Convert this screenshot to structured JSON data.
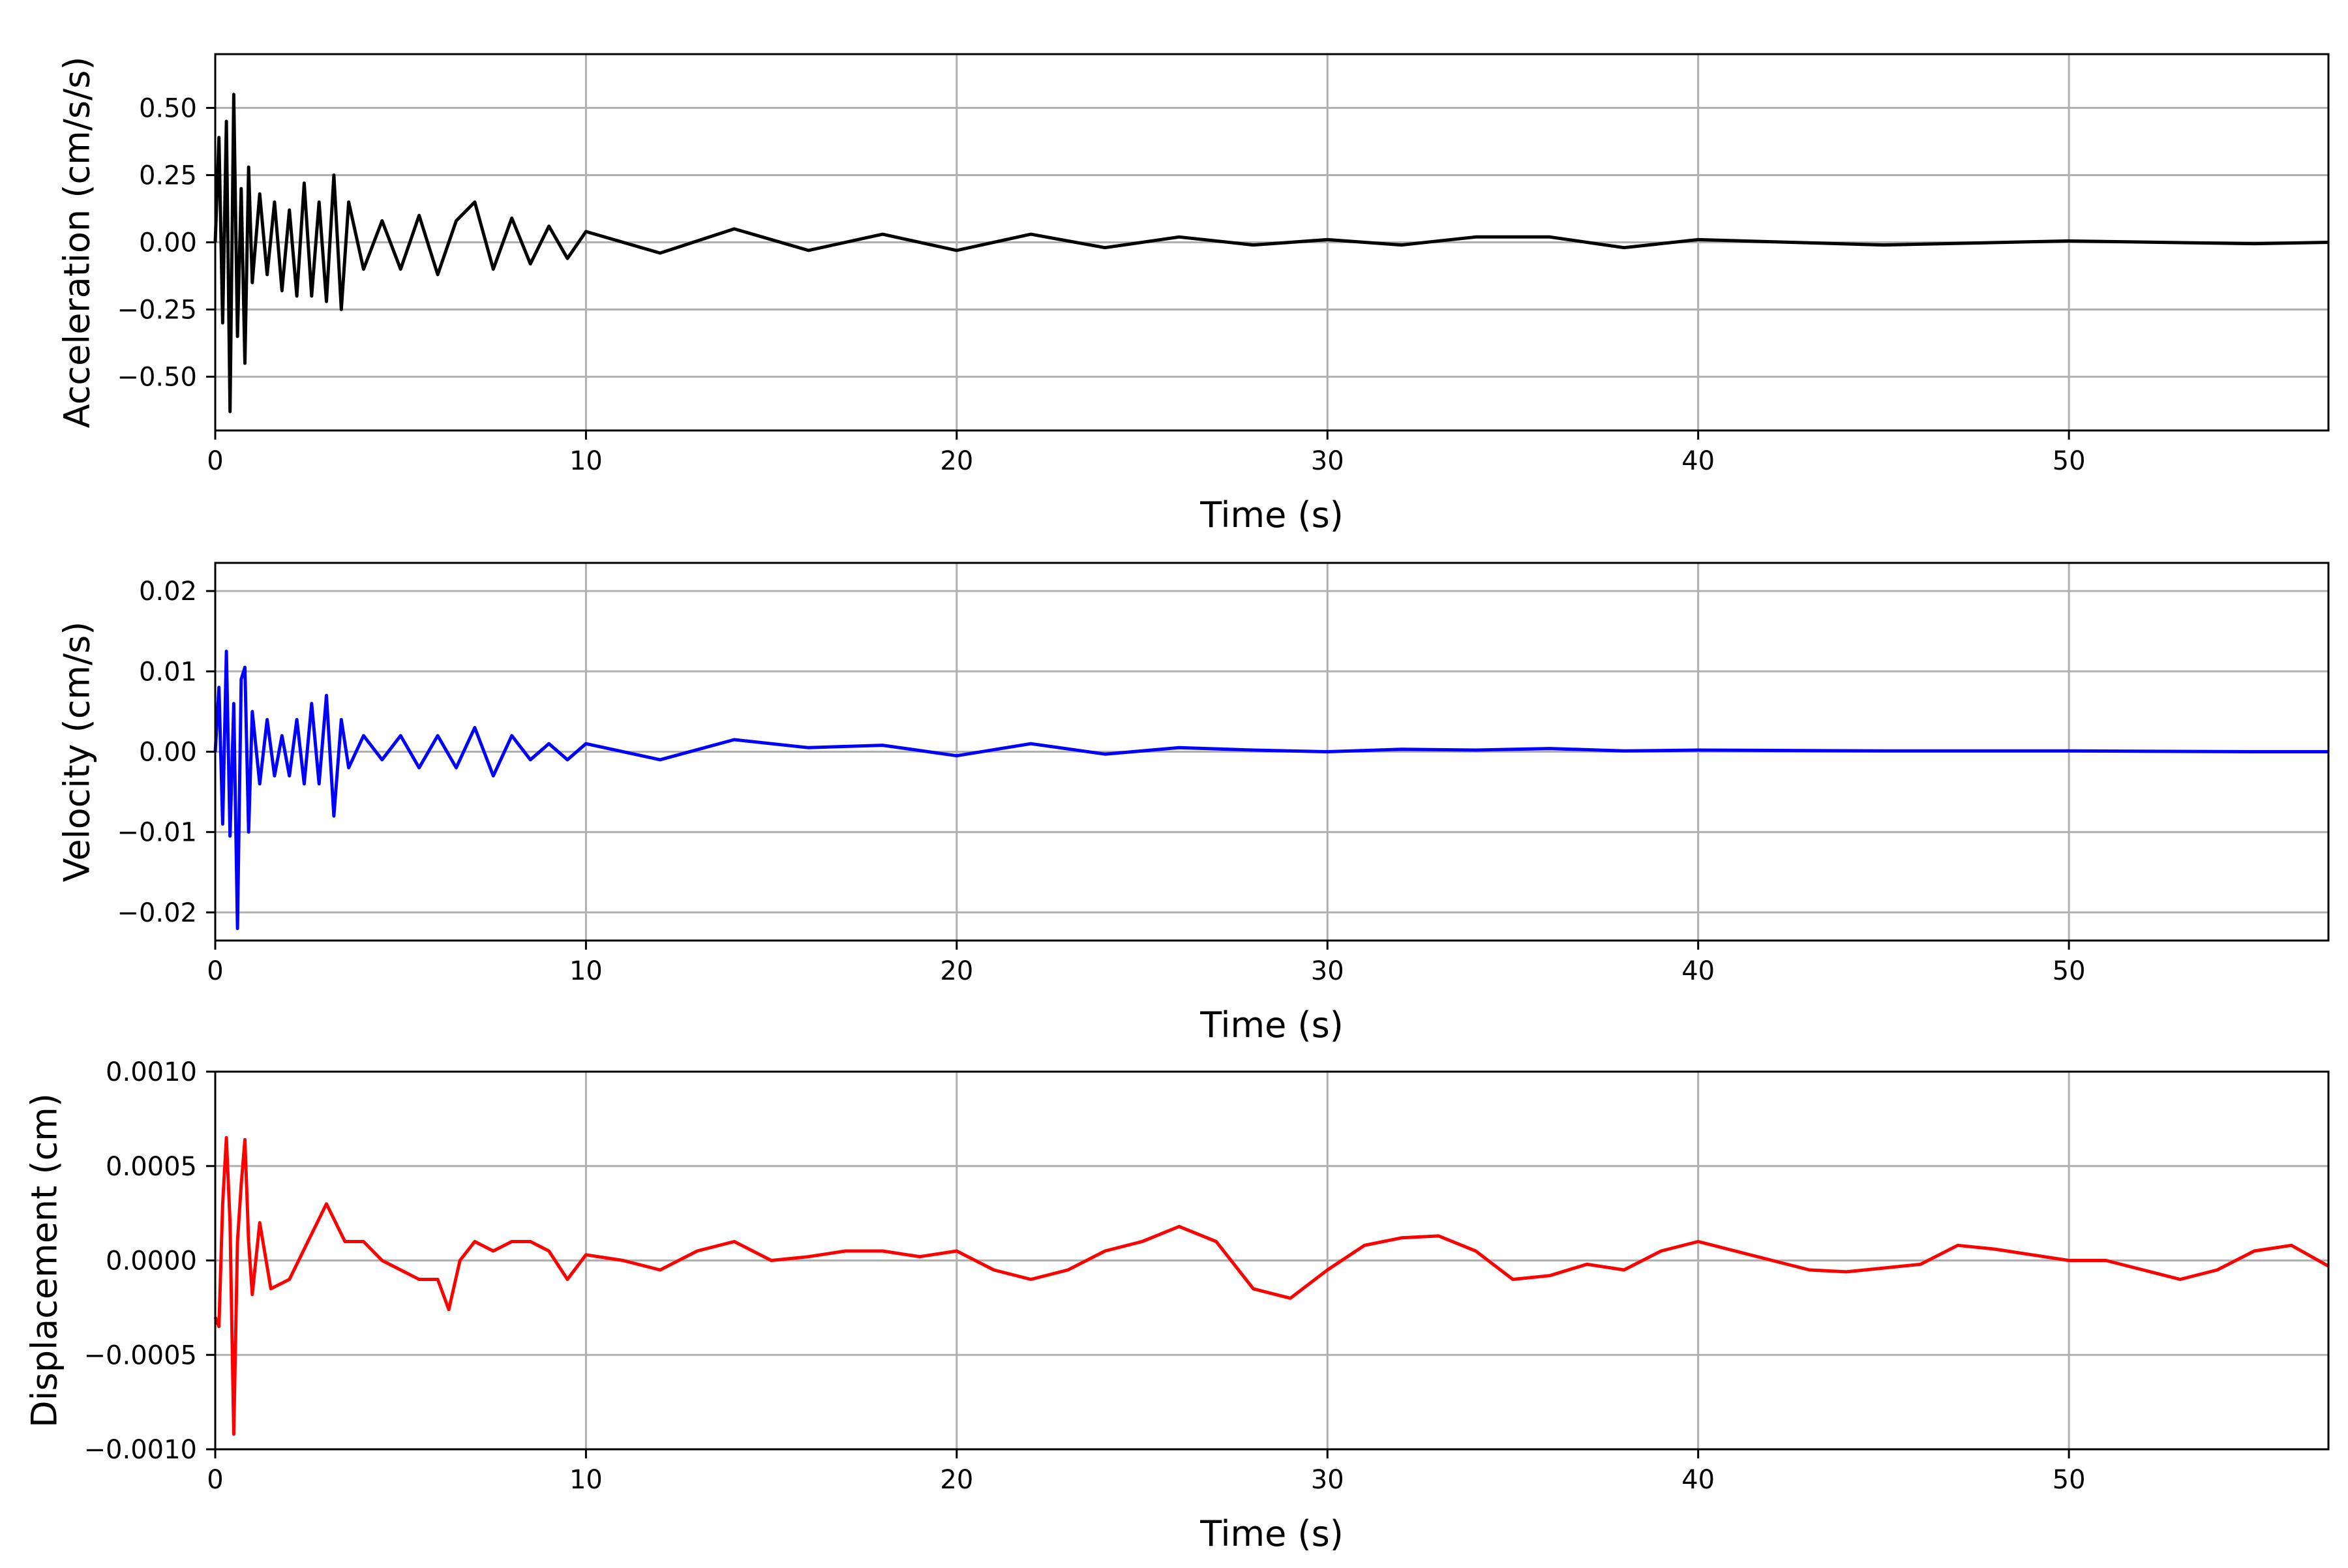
{
  "chart_data": [
    {
      "type": "line",
      "xlabel": "Time (s)",
      "ylabel": "Acceleration (cm/s/s)",
      "xlim": [
        0,
        57
      ],
      "ylim": [
        -0.7,
        0.7
      ],
      "xticks": [
        0,
        10,
        20,
        30,
        40,
        50
      ],
      "yticks": [
        -0.5,
        -0.25,
        0.0,
        0.25,
        0.5
      ],
      "ytick_labels": [
        "−0.50",
        "−0.25",
        "0.00",
        "0.25",
        "0.50"
      ],
      "grid": true,
      "color": "#000000",
      "series": [
        {
          "x": [
            0,
            0.1,
            0.2,
            0.3,
            0.4,
            0.5,
            0.6,
            0.7,
            0.8,
            0.9,
            1.0,
            1.2,
            1.4,
            1.6,
            1.8,
            2.0,
            2.2,
            2.4,
            2.6,
            2.8,
            3.0,
            3.2,
            3.4,
            3.6,
            4.0,
            4.5,
            5.0,
            5.5,
            6.0,
            6.5,
            7.0,
            7.5,
            8.0,
            8.5,
            9.0,
            9.5,
            10,
            12,
            14,
            16,
            18,
            20,
            22,
            24,
            26,
            28,
            30,
            32,
            34,
            36,
            38,
            40,
            45,
            50,
            55,
            57
          ],
          "values": [
            0.0,
            0.39,
            -0.3,
            0.45,
            -0.63,
            0.55,
            -0.35,
            0.2,
            -0.45,
            0.28,
            -0.15,
            0.18,
            -0.12,
            0.15,
            -0.18,
            0.12,
            -0.2,
            0.22,
            -0.2,
            0.15,
            -0.22,
            0.25,
            -0.25,
            0.15,
            -0.1,
            0.08,
            -0.1,
            0.1,
            -0.12,
            0.08,
            0.15,
            -0.1,
            0.09,
            -0.08,
            0.06,
            -0.06,
            0.04,
            -0.04,
            0.05,
            -0.03,
            0.03,
            -0.03,
            0.03,
            -0.02,
            0.02,
            -0.01,
            0.01,
            -0.01,
            0.02,
            0.02,
            -0.02,
            0.01,
            -0.01,
            0.005,
            -0.005,
            0.0
          ]
        }
      ]
    },
    {
      "type": "line",
      "xlabel": "Time (s)",
      "ylabel": "Velocity (cm/s)",
      "xlim": [
        0,
        57
      ],
      "ylim": [
        -0.0235,
        0.0235
      ],
      "xticks": [
        0,
        10,
        20,
        30,
        40,
        50
      ],
      "yticks": [
        -0.02,
        -0.01,
        0.0,
        0.01,
        0.02
      ],
      "ytick_labels": [
        "−0.02",
        "−0.01",
        "0.00",
        "0.01",
        "0.02"
      ],
      "grid": true,
      "color": "#0000ff",
      "series": [
        {
          "x": [
            0,
            0.1,
            0.2,
            0.3,
            0.4,
            0.5,
            0.6,
            0.7,
            0.8,
            0.9,
            1.0,
            1.2,
            1.4,
            1.6,
            1.8,
            2.0,
            2.2,
            2.4,
            2.6,
            2.8,
            3.0,
            3.2,
            3.4,
            3.6,
            4.0,
            4.5,
            5.0,
            5.5,
            6.0,
            6.5,
            7.0,
            7.5,
            8.0,
            8.5,
            9.0,
            9.5,
            10,
            12,
            14,
            16,
            18,
            20,
            22,
            24,
            26,
            28,
            30,
            32,
            34,
            36,
            38,
            40,
            45,
            50,
            55,
            57
          ],
          "values": [
            0.0,
            0.008,
            -0.009,
            0.0125,
            -0.0105,
            0.006,
            -0.022,
            0.009,
            0.0105,
            -0.01,
            0.005,
            -0.004,
            0.004,
            -0.003,
            0.002,
            -0.003,
            0.004,
            -0.004,
            0.006,
            -0.004,
            0.007,
            -0.008,
            0.004,
            -0.002,
            0.002,
            -0.001,
            0.002,
            -0.002,
            0.002,
            -0.002,
            0.003,
            -0.003,
            0.002,
            -0.001,
            0.001,
            -0.001,
            0.001,
            -0.001,
            0.0015,
            0.0005,
            0.0008,
            -0.0005,
            0.001,
            -0.0003,
            0.0005,
            0.0002,
            0.0,
            0.0003,
            0.0002,
            0.0004,
            0.0001,
            0.0002,
            0.0001,
            0.0001,
            0.0,
            0.0
          ]
        }
      ]
    },
    {
      "type": "line",
      "xlabel": "Time (s)",
      "ylabel": "Displacement (cm)",
      "xlim": [
        0,
        57
      ],
      "ylim": [
        -0.001,
        0.001
      ],
      "xticks": [
        0,
        10,
        20,
        30,
        40,
        50
      ],
      "yticks": [
        -0.001,
        -0.0005,
        0.0,
        0.0005,
        0.001
      ],
      "ytick_labels": [
        "−0.0010",
        "−0.0005",
        "0.0000",
        "0.0005",
        "0.0010"
      ],
      "grid": true,
      "color": "#ff0000",
      "series": [
        {
          "x": [
            0,
            0.1,
            0.2,
            0.3,
            0.4,
            0.5,
            0.6,
            0.7,
            0.8,
            0.9,
            1.0,
            1.2,
            1.5,
            2.0,
            2.5,
            3.0,
            3.5,
            4.0,
            4.5,
            5.0,
            5.5,
            6.0,
            6.3,
            6.6,
            7.0,
            7.5,
            8.0,
            8.5,
            9.0,
            9.5,
            10,
            11,
            12,
            13,
            14,
            15,
            16,
            17,
            18,
            19,
            20,
            21,
            22,
            23,
            24,
            25,
            26,
            27,
            28,
            29,
            30,
            31,
            32,
            33,
            34,
            35,
            36,
            37,
            38,
            39,
            40,
            41,
            42,
            43,
            44,
            45,
            46,
            47,
            48,
            49,
            50,
            51,
            52,
            53,
            54,
            55,
            56,
            57
          ],
          "values": [
            -0.0003,
            -0.00035,
            0.0003,
            0.00065,
            0.0002,
            -0.00092,
            0.0001,
            0.0004,
            0.00064,
            0.0001,
            -0.00018,
            0.0002,
            -0.00015,
            -0.0001,
            0.0001,
            0.0003,
            0.0001,
            0.0001,
            0.0,
            -5e-05,
            -0.0001,
            -0.0001,
            -0.00026,
            0.0,
            0.0001,
            5e-05,
            0.0001,
            0.0001,
            5e-05,
            -0.0001,
            3e-05,
            0.0,
            -5e-05,
            5e-05,
            0.0001,
            0.0,
            2e-05,
            5e-05,
            5e-05,
            2e-05,
            5e-05,
            -5e-05,
            -0.0001,
            -5e-05,
            5e-05,
            0.0001,
            0.00018,
            0.0001,
            -0.00015,
            -0.0002,
            -5e-05,
            8e-05,
            0.00012,
            0.00013,
            5e-05,
            -0.0001,
            -8e-05,
            -2e-05,
            -5e-05,
            5e-05,
            0.0001,
            5e-05,
            0.0,
            -5e-05,
            -6e-05,
            -4e-05,
            -2e-05,
            8e-05,
            6e-05,
            3e-05,
            0.0,
            0.0,
            -5e-05,
            -0.0001,
            -5e-05,
            5e-05,
            8e-05,
            -3e-05
          ]
        }
      ]
    }
  ]
}
